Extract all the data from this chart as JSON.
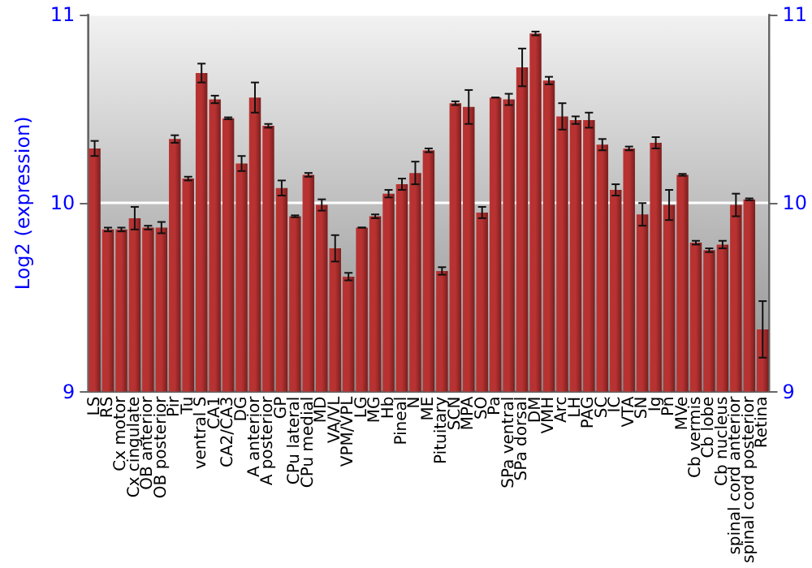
{
  "chart_data": {
    "type": "bar",
    "ylabel": "Log2 (expression)",
    "categories": [
      "LS",
      "RS",
      "Cx motor",
      "Cx cingulate",
      "OB anterior",
      "OB posterior",
      "Pir",
      "Tu",
      "ventral S",
      "CA1",
      "CA2/CA3",
      "DG",
      "A anterior",
      "A posterior",
      "GP",
      "CPu lateral",
      "CPu medial",
      "MD",
      "VA/VL",
      "VPM/VPL",
      "LG",
      "MG",
      "Hb",
      "Pineal",
      "N",
      "ME",
      "Pituitary",
      "SCN",
      "MPA",
      "SO",
      "Pa",
      "SPa ventral",
      "SPa dorsal",
      "DM",
      "VMH",
      "Arc",
      "LH",
      "PAG",
      "SC",
      "IC",
      "VTA",
      "SN",
      "Ig",
      "Pn",
      "MVe",
      "Cb vermis",
      "Cb lobe",
      "Cb nucleus",
      "spinal cord anterior",
      "spinal cord posterior",
      "Retina"
    ],
    "values": [
      10.29,
      9.86,
      9.86,
      9.92,
      9.87,
      9.87,
      10.34,
      10.13,
      10.69,
      10.55,
      10.45,
      10.21,
      10.56,
      10.41,
      10.08,
      9.93,
      10.15,
      9.99,
      9.76,
      9.61,
      9.87,
      9.93,
      10.05,
      10.1,
      10.16,
      10.28,
      9.64,
      10.53,
      10.51,
      9.95,
      10.56,
      10.55,
      10.72,
      10.9,
      10.65,
      10.46,
      10.44,
      10.44,
      10.31,
      10.07,
      10.29,
      9.94,
      10.32,
      9.99,
      10.15,
      9.79,
      9.75,
      9.78,
      9.99,
      10.02,
      9.33
    ],
    "errors": [
      0.04,
      0.01,
      0.01,
      0.06,
      0.01,
      0.03,
      0.02,
      0.01,
      0.05,
      0.02,
      0.005,
      0.04,
      0.08,
      0.01,
      0.04,
      0.005,
      0.01,
      0.03,
      0.07,
      0.02,
      0,
      0.01,
      0.02,
      0.03,
      0.06,
      0.01,
      0.02,
      0.01,
      0.09,
      0.03,
      0,
      0.03,
      0.1,
      0.01,
      0.02,
      0.07,
      0.02,
      0.04,
      0.03,
      0.03,
      0.01,
      0.06,
      0.03,
      0.08,
      0.005,
      0.01,
      0.01,
      0.02,
      0.06,
      0.005,
      0.15
    ],
    "color": "#b83232",
    "ylim": [
      9,
      11
    ],
    "yticks": [
      9,
      10,
      11
    ],
    "y2lim": [
      9,
      11
    ],
    "y2ticks": [
      9,
      10,
      11
    ],
    "grid": "y"
  }
}
